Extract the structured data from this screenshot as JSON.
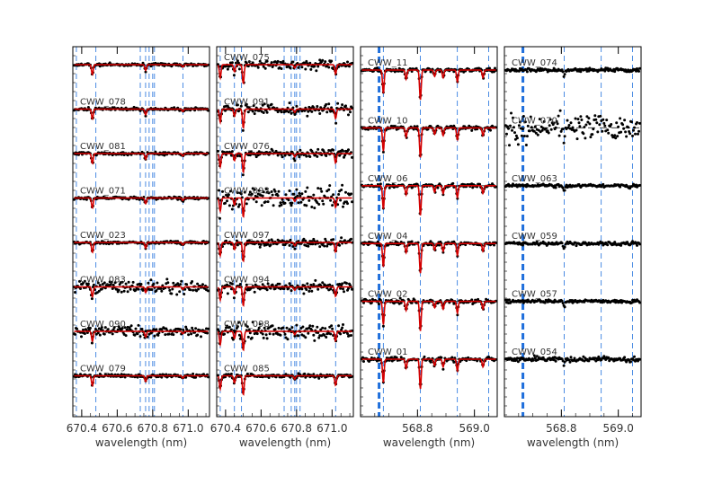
{
  "chart_data": [
    {
      "type": "line",
      "xlabel": "wavelength (nm)",
      "xlim": [
        670.35,
        671.12
      ],
      "xticks": [
        670.4,
        670.6,
        670.8,
        671.0
      ],
      "xtick_labels": [
        "670.4",
        "670.6",
        "670.8",
        "671.0"
      ],
      "markers": {
        "thick": [],
        "thin": [
          670.37,
          670.48,
          670.73,
          670.76,
          670.78,
          670.8,
          670.81,
          670.97
        ]
      },
      "lines": [
        670.46,
        670.76,
        670.97
      ],
      "lines_depth": [
        0.42,
        0.24,
        0.1
      ],
      "noise": [
        0.003,
        0.003,
        0.003,
        0.003,
        0.003,
        0.014,
        0.01,
        0.004
      ],
      "model": [
        true,
        true,
        true,
        true,
        true,
        true,
        true,
        true
      ],
      "series": [
        {
          "name": "",
          "offset": 0
        },
        {
          "name": "CWW_078",
          "offset": 1
        },
        {
          "name": "CWW_081",
          "offset": 2
        },
        {
          "name": "CWW_071",
          "offset": 3
        },
        {
          "name": "CWW_023",
          "offset": 4
        },
        {
          "name": "CWW_083",
          "offset": 5
        },
        {
          "name": "CWW_090",
          "offset": 6
        },
        {
          "name": "CWW_079",
          "offset": 7
        }
      ]
    },
    {
      "type": "line",
      "xlabel": "wavelength (nm)",
      "xlim": [
        670.35,
        671.12
      ],
      "xticks": [
        670.4,
        670.6,
        670.8,
        671.0
      ],
      "xtick_labels": [
        "670.4",
        "670.6",
        "670.8",
        "671.0"
      ],
      "markers": {
        "thick": [],
        "thin": [
          670.37,
          670.45,
          670.49,
          670.73,
          670.77,
          670.79,
          670.8,
          670.82,
          671.02
        ]
      },
      "lines": [
        670.37,
        670.45,
        670.5,
        670.79,
        671.02
      ],
      "lines_depth": [
        0.55,
        0.3,
        0.8,
        0.14,
        0.4
      ],
      "noise": [
        0.01,
        0.01,
        0.008,
        0.022,
        0.008,
        0.01,
        0.018,
        0.004
      ],
      "model": [
        true,
        true,
        true,
        true,
        true,
        true,
        true,
        true
      ],
      "series": [
        {
          "name": "CWW_075",
          "offset": 0
        },
        {
          "name": "CWW_091",
          "offset": 1
        },
        {
          "name": "CWW_076",
          "offset": 2
        },
        {
          "name": "CWW_093",
          "offset": 3
        },
        {
          "name": "CWW_097",
          "offset": 4
        },
        {
          "name": "CWW_094",
          "offset": 5
        },
        {
          "name": "CWW_098",
          "offset": 6
        },
        {
          "name": "CWW_085",
          "offset": 7
        }
      ]
    },
    {
      "type": "line",
      "xlabel": "wavelength (nm)",
      "xlim": [
        568.6,
        569.08
      ],
      "xticks": [
        568.8,
        569.0
      ],
      "xtick_labels": [
        "568.8",
        "569.0"
      ],
      "markers": {
        "thick": [
          568.665
        ],
        "thin": [
          568.68,
          568.81,
          568.94,
          569.05
        ]
      },
      "lines": [
        568.68,
        568.76,
        568.81,
        568.86,
        568.89,
        568.94,
        569.03
      ],
      "lines_depth": [
        0.9,
        0.35,
        1.15,
        0.25,
        0.3,
        0.45,
        0.3
      ],
      "noise": [
        0.004,
        0.004,
        0.004,
        0.004,
        0.004,
        0.004
      ],
      "model": [
        true,
        true,
        true,
        true,
        true,
        true
      ],
      "series": [
        {
          "name": "CWW_11",
          "offset": 0
        },
        {
          "name": "CWW_10",
          "offset": 1
        },
        {
          "name": "CWW_06",
          "offset": 2
        },
        {
          "name": "CWW_04",
          "offset": 3
        },
        {
          "name": "CWW_02",
          "offset": 4
        },
        {
          "name": "CWW_01",
          "offset": 5
        }
      ]
    },
    {
      "type": "line",
      "xlabel": "wavelength (nm)",
      "xlim": [
        568.6,
        569.08
      ],
      "xticks": [
        568.8,
        569.0
      ],
      "xtick_labels": [
        "568.8",
        "569.0"
      ],
      "markers": {
        "thick": [
          568.665
        ],
        "thin": [
          568.81,
          568.94,
          569.05
        ]
      },
      "lines": [
        568.81,
        569.04
      ],
      "lines_depth": [
        0.28,
        0.12
      ],
      "noise": [
        0.004,
        0.03,
        0.004,
        0.004,
        0.004,
        0.006
      ],
      "model": [
        false,
        false,
        false,
        false,
        false,
        false
      ],
      "series": [
        {
          "name": "CWW_074",
          "offset": 0
        },
        {
          "name": "CWW_070",
          "offset": 1
        },
        {
          "name": "CWW_063",
          "offset": 2
        },
        {
          "name": "CWW_059",
          "offset": 3
        },
        {
          "name": "CWW_057",
          "offset": 4
        },
        {
          "name": "CWW_054",
          "offset": 5
        }
      ]
    }
  ],
  "colors": {
    "data": "#000000",
    "model": "#d40000",
    "marker": "#1f6fdc",
    "continuum": "#444444",
    "axis": "#000000",
    "text": "#333333"
  }
}
